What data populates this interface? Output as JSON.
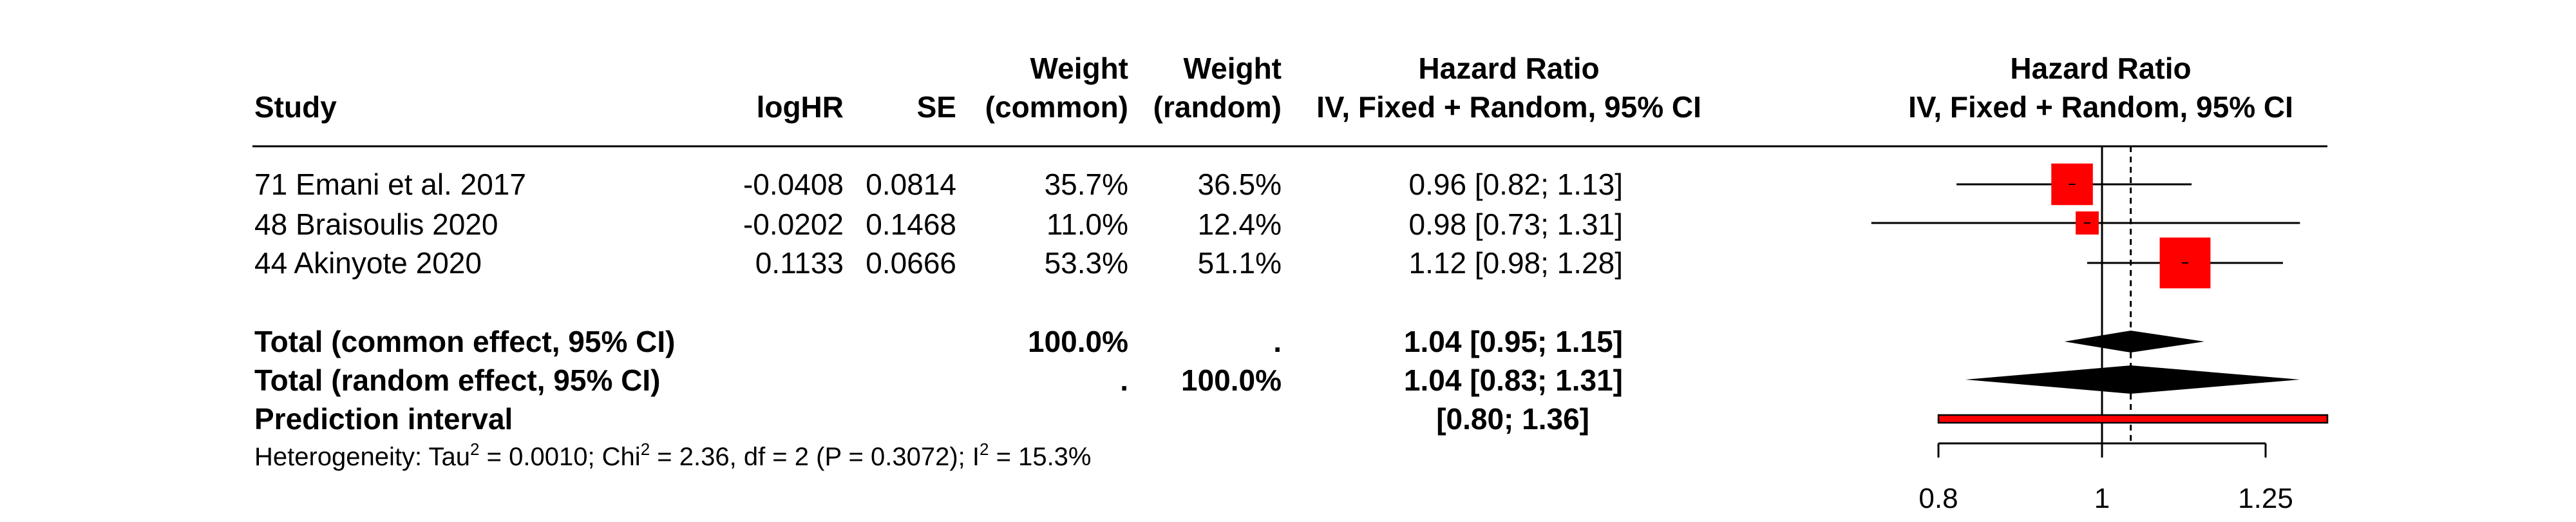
{
  "headers": {
    "study": "Study",
    "loghr": "logHR",
    "se": "SE",
    "weight_common_line1": "Weight",
    "weight_common_line2": "(common)",
    "weight_random_line1": "Weight",
    "weight_random_line2": "(random)",
    "hr_line1": "Hazard Ratio",
    "hr_line2": "IV, Fixed + Random, 95% CI",
    "plot_line1": "Hazard Ratio",
    "plot_line2": "IV, Fixed + Random, 95% CI"
  },
  "studies": [
    {
      "label": "71 Emani et al. 2017",
      "loghr": "-0.0408",
      "se": "0.0814",
      "w_common": "35.7%",
      "w_random": "36.5%",
      "hr_text": "0.96 [0.82; 1.13]"
    },
    {
      "label": "48 Braisoulis 2020",
      "loghr": "-0.0202",
      "se": "0.1468",
      "w_common": "11.0%",
      "w_random": "12.4%",
      "hr_text": "0.98 [0.73; 1.31]"
    },
    {
      "label": "44 Akinyote 2020",
      "loghr": "0.1133",
      "se": "0.0666",
      "w_common": "53.3%",
      "w_random": "51.1%",
      "hr_text": "1.12 [0.98; 1.28]"
    }
  ],
  "totals": {
    "common": {
      "label": "Total (common effect, 95% CI)",
      "w_common": "100.0%",
      "w_random": ".",
      "hr_text": "1.04 [0.95; 1.15]"
    },
    "random": {
      "label": "Total (random effect, 95% CI)",
      "w_common": ".",
      "w_random": "100.0%",
      "hr_text": "1.04 [0.83; 1.31]"
    },
    "prediction": {
      "label": "Prediction interval",
      "hr_text": "[0.80; 1.36]"
    }
  },
  "heterogeneity": {
    "p1": "Heterogeneity: Tau",
    "s1": "2",
    "p2": " = 0.0010; Chi",
    "s2": "2",
    "p3": " = 2.36, df = 2 (P = 0.3072); I",
    "s3": "2",
    "p4": " = 15.3%"
  },
  "chart_data": {
    "type": "forest",
    "measure": "Hazard Ratio",
    "scale": "log",
    "xlim": [
      0.8,
      1.36
    ],
    "ticks": [
      0.8,
      1,
      1.25
    ],
    "tick_labels": [
      "0.8",
      "1",
      "1.25"
    ],
    "null_value": 1,
    "studies": [
      {
        "name": "71 Emani et al. 2017",
        "hr": 0.96,
        "lower": 0.82,
        "upper": 1.13,
        "weight_common": 35.7,
        "weight_random": 36.5
      },
      {
        "name": "48 Braisoulis 2020",
        "hr": 0.98,
        "lower": 0.73,
        "upper": 1.31,
        "weight_common": 11.0,
        "weight_random": 12.4
      },
      {
        "name": "44 Akinyote 2020",
        "hr": 1.12,
        "lower": 0.98,
        "upper": 1.28,
        "weight_common": 53.3,
        "weight_random": 51.1
      }
    ],
    "pooled_common": {
      "hr": 1.04,
      "lower": 0.95,
      "upper": 1.15
    },
    "pooled_random": {
      "hr": 1.04,
      "lower": 0.83,
      "upper": 1.31
    },
    "prediction_interval": {
      "lower": 0.8,
      "upper": 1.36
    },
    "colors": {
      "square": "#ff0000",
      "diamond": "#000000",
      "prediction_fill": "#ff0000",
      "lines": "#000000"
    }
  }
}
